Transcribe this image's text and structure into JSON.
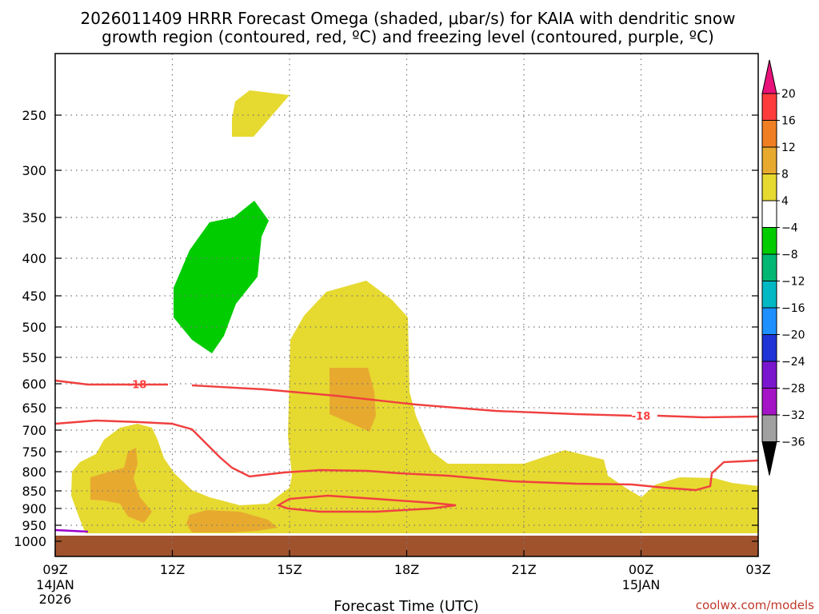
{
  "chart_data": {
    "type": "heatmap",
    "title_line1": "2026011409 HRRR Forecast Omega (shaded, μbar/s) for KAIA with dendritic snow",
    "title_line2": "growth region (contoured, red, ºC) and freezing level (contoured, purple, ºC)",
    "xlabel": "Forecast Time (UTC)",
    "credit": "coolwx.com/models",
    "y_axis": {
      "scale": "pressure (hPa), reversed",
      "ticks": [
        250,
        300,
        350,
        400,
        450,
        500,
        550,
        600,
        650,
        700,
        750,
        800,
        850,
        900,
        950,
        1000
      ]
    },
    "x_axis": {
      "range_hours": [
        9,
        27
      ],
      "ticks": [
        {
          "hour": 9,
          "label": "09Z",
          "sub": "14JAN",
          "sub2": "2026"
        },
        {
          "hour": 12,
          "label": "12Z"
        },
        {
          "hour": 15,
          "label": "15Z"
        },
        {
          "hour": 18,
          "label": "18Z"
        },
        {
          "hour": 21,
          "label": "21Z"
        },
        {
          "hour": 24,
          "label": "00Z",
          "sub": "15JAN"
        },
        {
          "hour": 27,
          "label": "03Z"
        }
      ]
    },
    "colorbar": {
      "labels": [
        "20",
        "16",
        "12",
        "8",
        "4",
        "−4",
        "−8",
        "−12",
        "−16",
        "−20",
        "−24",
        "−28",
        "−32",
        "−36"
      ],
      "colors": [
        "#ff3c3c",
        "#f07f24",
        "#e7aa2f",
        "#e6d930",
        "#ffffff",
        "#00cc00",
        "#00b873",
        "#00b9c4",
        "#1e90ff",
        "#1f33d6",
        "#7b16cf",
        "#a513c7",
        "#a0a0a0"
      ],
      "top_extend_color": "#e8127a",
      "bottom_extend_color": "#000000"
    },
    "contour_labels": [
      {
        "text": "-18",
        "hour": 11.1,
        "p": 601
      },
      {
        "text": "-18",
        "hour": 24.0,
        "p": 668
      }
    ],
    "colors": {
      "yellow": "#e6d930",
      "orange": "#e7aa2f",
      "green": "#00cc00",
      "ground": "#a0522d",
      "red_contour": "#f04040",
      "purple_contour": "#9900cc"
    }
  }
}
